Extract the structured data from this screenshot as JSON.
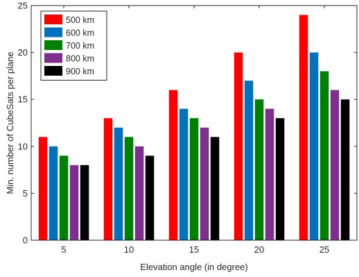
{
  "chart_data": {
    "type": "bar",
    "xlabel": "Elevation angle (in degree)",
    "ylabel": "Min. number of CubeSats per plane",
    "categories": [
      "5",
      "10",
      "15",
      "20",
      "25"
    ],
    "ylim": [
      0,
      25
    ],
    "yticks": [
      0,
      5,
      10,
      15,
      20,
      25
    ],
    "grid": false,
    "legend_position": "top-left",
    "series": [
      {
        "name": "500 km",
        "color": "#ff0000",
        "values": [
          11,
          13,
          16,
          20,
          24
        ]
      },
      {
        "name": "600 km",
        "color": "#0072bd",
        "values": [
          10,
          12,
          14,
          17,
          20
        ]
      },
      {
        "name": "700 km",
        "color": "#008000",
        "values": [
          9,
          11,
          13,
          15,
          18
        ]
      },
      {
        "name": "800 km",
        "color": "#7e2f8e",
        "values": [
          8,
          10,
          12,
          14,
          16
        ]
      },
      {
        "name": "900 km",
        "color": "#000000",
        "values": [
          8,
          9,
          11,
          13,
          15
        ]
      }
    ]
  }
}
